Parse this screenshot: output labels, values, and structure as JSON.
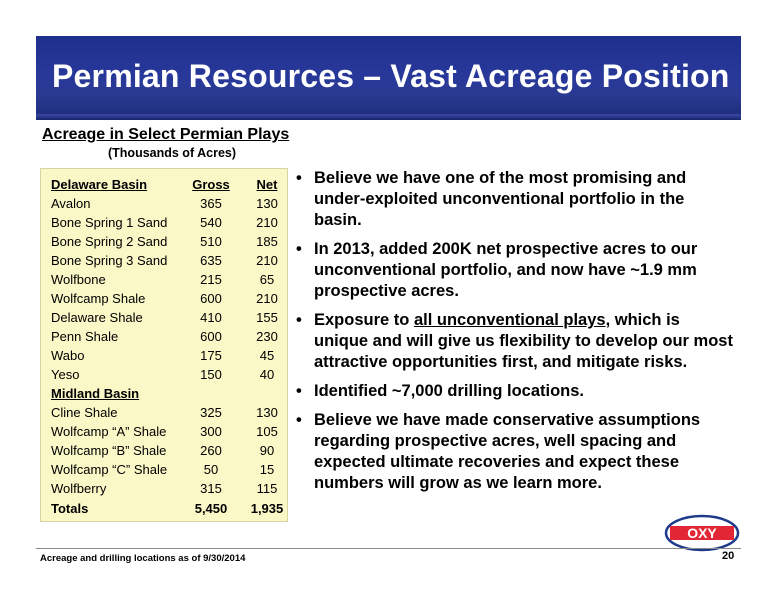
{
  "title": "Permian Resources – Vast Acreage Position",
  "table_section": {
    "heading": "Acreage in Select Permian Plays",
    "subheading": "(Thousands of Acres)",
    "columns": [
      "Delaware Basin",
      "Gross",
      "Net"
    ],
    "delaware_rows": [
      {
        "name": "Avalon",
        "gross": "365",
        "net": "130"
      },
      {
        "name": "Bone Spring 1 Sand",
        "gross": "540",
        "net": "210"
      },
      {
        "name": "Bone Spring 2 Sand",
        "gross": "510",
        "net": "185"
      },
      {
        "name": "Bone Spring 3 Sand",
        "gross": "635",
        "net": "210"
      },
      {
        "name": "Wolfbone",
        "gross": "215",
        "net": "65"
      },
      {
        "name": "Wolfcamp Shale",
        "gross": "600",
        "net": "210"
      },
      {
        "name": "Delaware Shale",
        "gross": "410",
        "net": "155"
      },
      {
        "name": "Penn Shale",
        "gross": "600",
        "net": "230"
      },
      {
        "name": "Wabo",
        "gross": "175",
        "net": "45"
      },
      {
        "name": "Yeso",
        "gross": "150",
        "net": "40"
      }
    ],
    "midland_heading": "Midland Basin",
    "midland_rows": [
      {
        "name": "Cline Shale",
        "gross": "325",
        "net": "130"
      },
      {
        "name": "Wolfcamp “A” Shale",
        "gross": "300",
        "net": "105"
      },
      {
        "name": "Wolfcamp “B” Shale",
        "gross": "260",
        "net": "90"
      },
      {
        "name": "Wolfcamp “C” Shale",
        "gross": "50",
        "net": "15"
      },
      {
        "name": "Wolfberry",
        "gross": "315",
        "net": "115"
      }
    ],
    "totals": {
      "name": "Totals",
      "gross": "5,450",
      "net": "1,935"
    }
  },
  "bullets": [
    {
      "text": "Believe we have one of the most promising and under-exploited unconventional portfolio in the basin."
    },
    {
      "text": "In 2013, added 200K net prospective acres to our unconventional portfolio, and now have ~1.9 mm prospective acres."
    },
    {
      "pre": "Exposure to ",
      "underlined": "all unconventional plays",
      "post": ", which is unique and will give us flexibility to develop our most attractive opportunities first, and mitigate risks."
    },
    {
      "text": "Identified ~7,000 drilling locations."
    },
    {
      "text": "Believe we have made conservative assumptions regarding prospective acres, well spacing and expected ultimate recoveries and expect these numbers will grow as we learn more."
    }
  ],
  "bullet_glyph": "•",
  "logo": {
    "text": "OXY",
    "icon": "oxy-logo-icon",
    "colors": {
      "red": "#e32636",
      "blue": "#1e3a8a"
    }
  },
  "footer": {
    "note": "Acreage and drilling locations as of 9/30/2014",
    "page": "20"
  }
}
